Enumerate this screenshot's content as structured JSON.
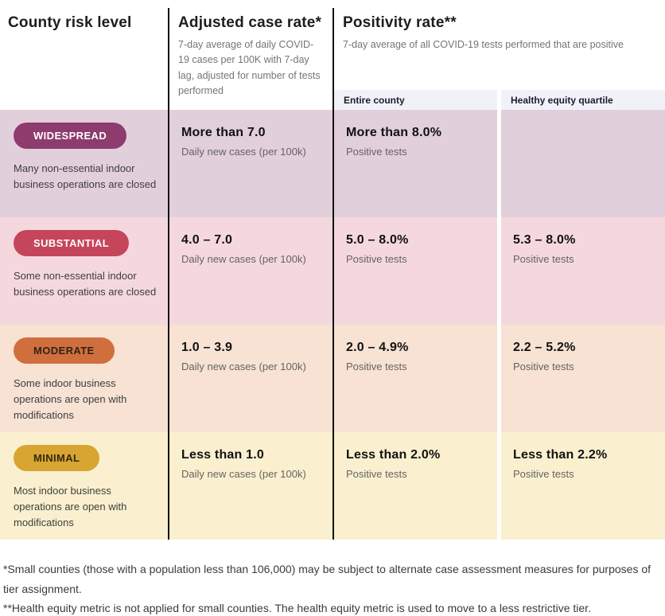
{
  "header": {
    "col1_title": "County risk level",
    "col2_title": "Adjusted case rate*",
    "col2_subtitle": "7-day average of daily COVID-19 cases per 100K with 7-day lag, adjusted for number of tests performed",
    "col3_title": "Positivity rate**",
    "col3_subtitle": "7-day average of all COVID-19 tests performed that are positive",
    "sub_entire": "Entire county",
    "sub_equity": "Healthy equity quartile"
  },
  "colors": {
    "divider": "#111111",
    "subheader_bg": "#f1f2f8",
    "column_gap": "#ffffff"
  },
  "rows": [
    {
      "tier": "WIDESPREAD",
      "badge_bg": "#8e3b6e",
      "badge_fg": "#ffffff",
      "row_bg": "#e2cfdc",
      "description": "Many non-essential indoor business operations are closed",
      "case_value": "More than 7.0",
      "case_caption": "Daily new cases (per 100k)",
      "entire_value": "More than 8.0%",
      "entire_caption": "Positive tests",
      "equity_value": "",
      "equity_caption": ""
    },
    {
      "tier": "SUBSTANTIAL",
      "badge_bg": "#c5455a",
      "badge_fg": "#ffffff",
      "row_bg": "#f5d8dd",
      "description": "Some non-essential indoor business operations are closed",
      "case_value": "4.0 – 7.0",
      "case_caption": "Daily new cases (per 100k)",
      "entire_value": "5.0 – 8.0%",
      "entire_caption": "Positive tests",
      "equity_value": "5.3 – 8.0%",
      "equity_caption": "Positive tests"
    },
    {
      "tier": "MODERATE",
      "badge_bg": "#d06f3d",
      "badge_fg": "#2f2318",
      "row_bg": "#f7e2d3",
      "description": "Some indoor business operations are open with modifications",
      "case_value": "1.0 – 3.9",
      "case_caption": "Daily new cases (per 100k)",
      "entire_value": "2.0 – 4.9%",
      "entire_caption": "Positive tests",
      "equity_value": "2.2 – 5.2%",
      "equity_caption": "Positive tests"
    },
    {
      "tier": "MINIMAL",
      "badge_bg": "#d8a533",
      "badge_fg": "#32290f",
      "row_bg": "#faf0cf",
      "description": "Most indoor business operations are open with modifications",
      "case_value": "Less than 1.0",
      "case_caption": "Daily new cases (per 100k)",
      "entire_value": "Less than 2.0%",
      "entire_caption": "Positive tests",
      "equity_value": "Less than 2.2%",
      "equity_caption": "Positive tests"
    }
  ],
  "footnotes": [
    "*Small counties (those with a population less than 106,000) may be subject to alternate case assessment measures for purposes of tier assignment.",
    "**Health equity metric is not applied for small counties. The health equity metric is used to move to a less restrictive tier."
  ]
}
